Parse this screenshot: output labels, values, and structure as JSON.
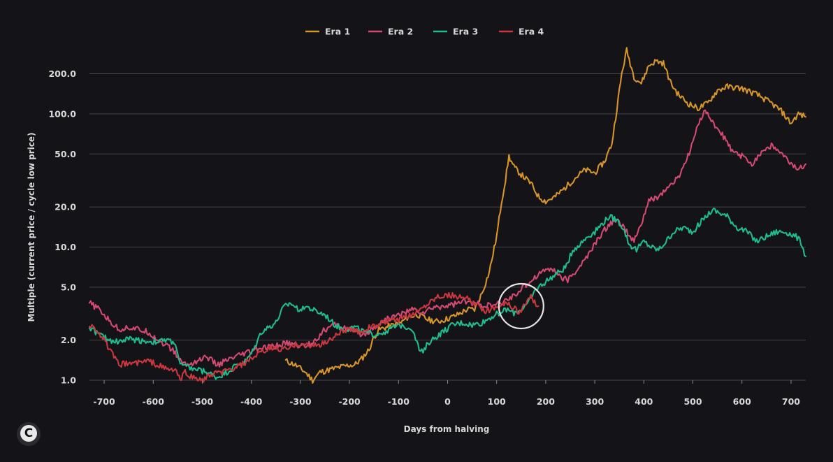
{
  "chart_data": {
    "type": "line",
    "title": "",
    "xlabel": "Days from halving",
    "ylabel": "Multiple (current price / cycle low price)",
    "y_scale": "log",
    "xlim": [
      -730,
      730
    ],
    "ylim": [
      1.0,
      300
    ],
    "x_ticks": [
      -700,
      -600,
      -500,
      -400,
      -300,
      -200,
      -100,
      0,
      100,
      200,
      300,
      400,
      500,
      600,
      700
    ],
    "x_tick_labels": [
      "-700",
      "-600",
      "-500",
      "-400",
      "-300",
      "-200",
      "-100",
      "0",
      "100",
      "200",
      "300",
      "400",
      "500",
      "600",
      "700"
    ],
    "y_ticks": [
      1.0,
      2.0,
      5.0,
      10.0,
      20.0,
      50.0,
      100.0,
      200.0
    ],
    "y_tick_labels": [
      "1.0",
      "2.0",
      "5.0",
      "10.0",
      "20.0",
      "50.0",
      "100.0",
      "200.0"
    ],
    "grid": "horizontal",
    "legend_position": "top-center",
    "highlight_circle": {
      "x": 150,
      "y": 3.6
    },
    "series": [
      {
        "name": "Era 1",
        "color": "#d6952a",
        "points": [
          [
            -330,
            1.4
          ],
          [
            -310,
            1.3
          ],
          [
            -290,
            1.15
          ],
          [
            -275,
            1.0
          ],
          [
            -260,
            1.15
          ],
          [
            -240,
            1.2
          ],
          [
            -220,
            1.25
          ],
          [
            -200,
            1.3
          ],
          [
            -190,
            1.3
          ],
          [
            -175,
            1.45
          ],
          [
            -160,
            1.7
          ],
          [
            -150,
            2.1
          ],
          [
            -140,
            2.4
          ],
          [
            -125,
            2.5
          ],
          [
            -110,
            2.6
          ],
          [
            -95,
            2.7
          ],
          [
            -80,
            3.0
          ],
          [
            -60,
            3.1
          ],
          [
            -40,
            2.85
          ],
          [
            -20,
            2.75
          ],
          [
            0,
            2.9
          ],
          [
            20,
            3.1
          ],
          [
            40,
            3.4
          ],
          [
            55,
            3.4
          ],
          [
            70,
            4.5
          ],
          [
            85,
            6.5
          ],
          [
            100,
            12
          ],
          [
            110,
            22
          ],
          [
            118,
            32
          ],
          [
            125,
            48
          ],
          [
            135,
            40
          ],
          [
            150,
            35
          ],
          [
            170,
            30
          ],
          [
            185,
            24
          ],
          [
            200,
            22
          ],
          [
            220,
            24
          ],
          [
            240,
            28
          ],
          [
            260,
            33
          ],
          [
            280,
            38
          ],
          [
            300,
            36
          ],
          [
            320,
            44
          ],
          [
            335,
            60
          ],
          [
            345,
            110
          ],
          [
            355,
            200
          ],
          [
            365,
            300
          ],
          [
            380,
            190
          ],
          [
            395,
            170
          ],
          [
            410,
            230
          ],
          [
            425,
            250
          ],
          [
            440,
            240
          ],
          [
            455,
            170
          ],
          [
            470,
            140
          ],
          [
            490,
            120
          ],
          [
            510,
            110
          ],
          [
            530,
            120
          ],
          [
            550,
            150
          ],
          [
            570,
            160
          ],
          [
            600,
            155
          ],
          [
            630,
            140
          ],
          [
            660,
            120
          ],
          [
            680,
            105
          ],
          [
            700,
            85
          ],
          [
            715,
            100
          ],
          [
            730,
            95
          ]
        ]
      },
      {
        "name": "Era 2",
        "color": "#d24a72",
        "points": [
          [
            -730,
            3.8
          ],
          [
            -710,
            3.4
          ],
          [
            -690,
            2.8
          ],
          [
            -670,
            2.4
          ],
          [
            -650,
            2.5
          ],
          [
            -630,
            2.4
          ],
          [
            -610,
            2.3
          ],
          [
            -590,
            2.0
          ],
          [
            -570,
            1.8
          ],
          [
            -555,
            1.6
          ],
          [
            -545,
            1.4
          ],
          [
            -530,
            1.3
          ],
          [
            -510,
            1.4
          ],
          [
            -490,
            1.5
          ],
          [
            -470,
            1.3
          ],
          [
            -450,
            1.4
          ],
          [
            -430,
            1.5
          ],
          [
            -410,
            1.6
          ],
          [
            -390,
            1.7
          ],
          [
            -370,
            1.75
          ],
          [
            -350,
            1.8
          ],
          [
            -330,
            1.9
          ],
          [
            -310,
            1.85
          ],
          [
            -290,
            1.8
          ],
          [
            -270,
            2.0
          ],
          [
            -250,
            2.4
          ],
          [
            -230,
            2.6
          ],
          [
            -210,
            2.5
          ],
          [
            -190,
            2.3
          ],
          [
            -170,
            2.2
          ],
          [
            -150,
            2.5
          ],
          [
            -130,
            2.8
          ],
          [
            -110,
            3.0
          ],
          [
            -90,
            3.2
          ],
          [
            -70,
            3.4
          ],
          [
            -50,
            3.2
          ],
          [
            -30,
            3.5
          ],
          [
            -10,
            3.6
          ],
          [
            10,
            3.7
          ],
          [
            30,
            3.9
          ],
          [
            50,
            3.8
          ],
          [
            70,
            3.7
          ],
          [
            90,
            3.6
          ],
          [
            110,
            3.8
          ],
          [
            130,
            4.2
          ],
          [
            150,
            4.8
          ],
          [
            170,
            5.6
          ],
          [
            190,
            6.5
          ],
          [
            210,
            7.0
          ],
          [
            230,
            6.0
          ],
          [
            245,
            5.6
          ],
          [
            260,
            6.5
          ],
          [
            280,
            8.0
          ],
          [
            300,
            10.5
          ],
          [
            320,
            13.5
          ],
          [
            340,
            16
          ],
          [
            355,
            15
          ],
          [
            370,
            12
          ],
          [
            380,
            11
          ],
          [
            395,
            15
          ],
          [
            410,
            22
          ],
          [
            430,
            24
          ],
          [
            450,
            28
          ],
          [
            470,
            33
          ],
          [
            490,
            48
          ],
          [
            510,
            80
          ],
          [
            525,
            110
          ],
          [
            540,
            85
          ],
          [
            560,
            70
          ],
          [
            580,
            52
          ],
          [
            600,
            48
          ],
          [
            620,
            42
          ],
          [
            640,
            52
          ],
          [
            660,
            58
          ],
          [
            680,
            50
          ],
          [
            700,
            42
          ],
          [
            715,
            38
          ],
          [
            730,
            42
          ]
        ]
      },
      {
        "name": "Era 3",
        "color": "#1fbc8e",
        "points": [
          [
            -730,
            2.5
          ],
          [
            -710,
            2.2
          ],
          [
            -690,
            2.0
          ],
          [
            -670,
            1.95
          ],
          [
            -650,
            2.05
          ],
          [
            -630,
            2.0
          ],
          [
            -610,
            1.95
          ],
          [
            -590,
            1.95
          ],
          [
            -570,
            2.0
          ],
          [
            -555,
            1.9
          ],
          [
            -545,
            1.3
          ],
          [
            -530,
            1.25
          ],
          [
            -510,
            1.2
          ],
          [
            -490,
            1.15
          ],
          [
            -470,
            1.05
          ],
          [
            -450,
            1.15
          ],
          [
            -430,
            1.3
          ],
          [
            -410,
            1.4
          ],
          [
            -395,
            1.7
          ],
          [
            -380,
            2.3
          ],
          [
            -365,
            2.5
          ],
          [
            -350,
            2.7
          ],
          [
            -335,
            3.5
          ],
          [
            -320,
            3.8
          ],
          [
            -305,
            3.4
          ],
          [
            -290,
            3.6
          ],
          [
            -270,
            3.3
          ],
          [
            -250,
            3.1
          ],
          [
            -230,
            2.6
          ],
          [
            -210,
            2.4
          ],
          [
            -190,
            2.5
          ],
          [
            -170,
            2.3
          ],
          [
            -150,
            2.2
          ],
          [
            -130,
            2.3
          ],
          [
            -110,
            2.5
          ],
          [
            -90,
            2.6
          ],
          [
            -70,
            2.4
          ],
          [
            -58,
            1.7
          ],
          [
            -50,
            1.6
          ],
          [
            -40,
            1.9
          ],
          [
            -25,
            2.1
          ],
          [
            -10,
            2.3
          ],
          [
            10,
            2.6
          ],
          [
            30,
            2.7
          ],
          [
            50,
            2.6
          ],
          [
            70,
            2.7
          ],
          [
            90,
            3.0
          ],
          [
            105,
            3.2
          ],
          [
            120,
            3.4
          ],
          [
            135,
            3.2
          ],
          [
            150,
            3.4
          ],
          [
            165,
            3.8
          ],
          [
            180,
            4.8
          ],
          [
            200,
            5.5
          ],
          [
            220,
            6.2
          ],
          [
            240,
            7.0
          ],
          [
            255,
            9.5
          ],
          [
            270,
            10.5
          ],
          [
            285,
            12
          ],
          [
            300,
            13
          ],
          [
            315,
            15
          ],
          [
            330,
            17
          ],
          [
            345,
            16
          ],
          [
            358,
            14
          ],
          [
            370,
            10.5
          ],
          [
            385,
            9.5
          ],
          [
            400,
            11
          ],
          [
            415,
            10
          ],
          [
            430,
            9.5
          ],
          [
            445,
            11
          ],
          [
            460,
            13
          ],
          [
            480,
            14
          ],
          [
            500,
            13
          ],
          [
            520,
            16
          ],
          [
            540,
            19
          ],
          [
            555,
            18
          ],
          [
            570,
            17
          ],
          [
            590,
            14
          ],
          [
            610,
            13
          ],
          [
            630,
            11
          ],
          [
            650,
            12
          ],
          [
            670,
            13
          ],
          [
            690,
            13
          ],
          [
            710,
            12
          ],
          [
            720,
            11
          ],
          [
            730,
            8.5
          ]
        ]
      },
      {
        "name": "Era 4",
        "color": "#c8383e",
        "points": [
          [
            -730,
            2.6
          ],
          [
            -715,
            2.4
          ],
          [
            -700,
            2.0
          ],
          [
            -685,
            1.6
          ],
          [
            -670,
            1.3
          ],
          [
            -650,
            1.35
          ],
          [
            -630,
            1.35
          ],
          [
            -610,
            1.4
          ],
          [
            -590,
            1.3
          ],
          [
            -570,
            1.2
          ],
          [
            -555,
            1.2
          ],
          [
            -545,
            1.0
          ],
          [
            -535,
            1.15
          ],
          [
            -520,
            1.05
          ],
          [
            -500,
            1.0
          ],
          [
            -480,
            1.1
          ],
          [
            -460,
            1.15
          ],
          [
            -440,
            1.2
          ],
          [
            -420,
            1.3
          ],
          [
            -400,
            1.45
          ],
          [
            -380,
            1.6
          ],
          [
            -360,
            1.75
          ],
          [
            -340,
            1.7
          ],
          [
            -320,
            1.75
          ],
          [
            -300,
            1.9
          ],
          [
            -280,
            1.8
          ],
          [
            -260,
            1.85
          ],
          [
            -240,
            2.0
          ],
          [
            -220,
            2.3
          ],
          [
            -200,
            2.4
          ],
          [
            -180,
            2.3
          ],
          [
            -160,
            2.5
          ],
          [
            -140,
            2.6
          ],
          [
            -120,
            2.8
          ],
          [
            -100,
            2.8
          ],
          [
            -80,
            3.0
          ],
          [
            -60,
            3.3
          ],
          [
            -40,
            3.8
          ],
          [
            -20,
            4.3
          ],
          [
            0,
            4.4
          ],
          [
            20,
            4.2
          ],
          [
            40,
            4.1
          ],
          [
            60,
            3.6
          ],
          [
            80,
            3.3
          ],
          [
            100,
            3.6
          ],
          [
            120,
            3.8
          ],
          [
            135,
            3.5
          ],
          [
            145,
            3.2
          ],
          [
            155,
            3.6
          ],
          [
            170,
            4.2
          ],
          [
            185,
            3.6
          ]
        ]
      }
    ]
  },
  "brand": {
    "logo_glyph": "C"
  }
}
